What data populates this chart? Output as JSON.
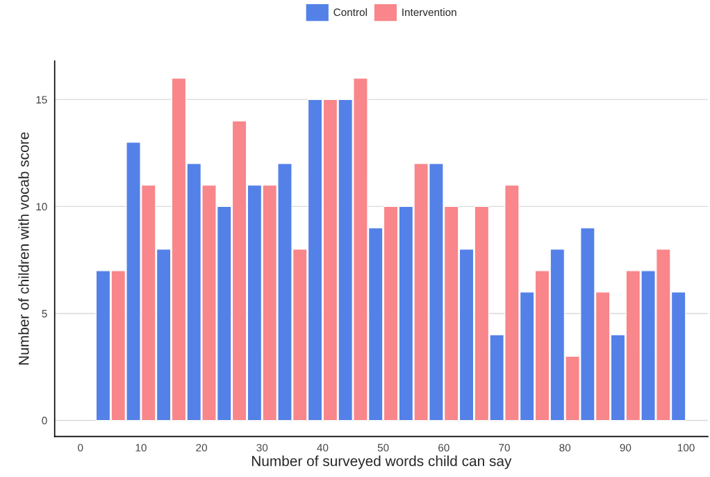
{
  "chart_data": {
    "type": "bar",
    "xlabel": "Number of surveyed words child can say",
    "ylabel": "Number of children with vocab score",
    "x": [
      5,
      10,
      15,
      20,
      25,
      30,
      35,
      40,
      45,
      50,
      55,
      60,
      65,
      70,
      75,
      80,
      85,
      90,
      95,
      100
    ],
    "series": [
      {
        "name": "Control",
        "color": "#5381e8",
        "values": [
          7,
          13,
          8,
          12,
          10,
          11,
          12,
          15,
          15,
          9,
          10,
          12,
          8,
          4,
          6,
          8,
          9,
          4,
          7,
          6
        ]
      },
      {
        "name": "Intervention",
        "color": "#f8868a",
        "values": [
          7,
          11,
          16,
          11,
          14,
          11,
          8,
          15,
          16,
          10,
          12,
          10,
          10,
          11,
          7,
          3,
          6,
          7,
          8,
          null
        ]
      }
    ],
    "xlim": [
      -4.25,
      103.6
    ],
    "ylim": [
      -0.75,
      16.8
    ],
    "xticks": [
      0,
      10,
      20,
      30,
      40,
      50,
      60,
      70,
      80,
      90,
      100
    ],
    "yticks": [
      0,
      5,
      10,
      15
    ],
    "grid": "y",
    "legend": "top"
  }
}
